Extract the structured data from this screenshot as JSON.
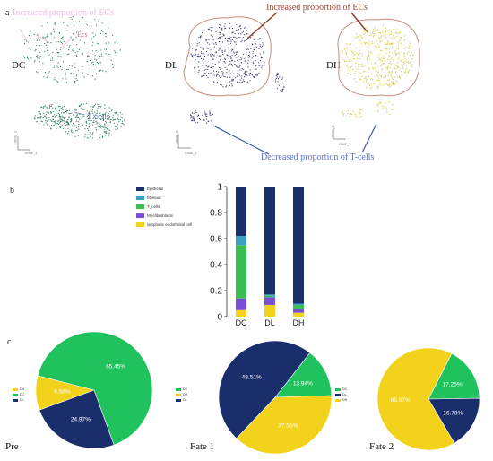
{
  "panel_a": {
    "letter": "a",
    "faded_label": "Increased proportion of ECs",
    "ecs_label": "Ecs",
    "tcells_label": "T cells",
    "increased_label": "Increased proportion of ECs",
    "decreased_label": "Decreased proportion of T-cells",
    "samples": [
      {
        "name": "DC",
        "color": "#2e7d55",
        "axis_x": "tSNE_1",
        "axis_y": "tSNE_2"
      },
      {
        "name": "DL",
        "color": "#3a3a7a",
        "axis_x": "tSNE_1",
        "axis_y": "tSNE_2"
      },
      {
        "name": "DH",
        "color": "#d7c43a",
        "axis_x": "tSNE_1",
        "axis_y": "tSNE_2"
      }
    ]
  },
  "panel_b": {
    "letter": "b",
    "legend": [
      {
        "name": "Epithelial",
        "color": "#1a2e6b"
      },
      {
        "name": "Myeloid",
        "color": "#3d9fc2"
      },
      {
        "name": "T_cells",
        "color": "#3dbb55"
      },
      {
        "name": "Myofibroblasts",
        "color": "#7b4fd6"
      },
      {
        "name": "lymphatic endothelial cell",
        "color": "#f2d21a"
      }
    ]
  },
  "chart_data": [
    {
      "type": "bar",
      "stacked": true,
      "categories": [
        "DC",
        "DL",
        "DH"
      ],
      "ylim": [
        0,
        1
      ],
      "yticks": [
        "0",
        "0.2",
        "0.4",
        "0.6",
        "0.8",
        "1"
      ],
      "series": [
        {
          "name": "lymphatic endothelial cell",
          "color": "#f2d21a",
          "values": [
            0.05,
            0.09,
            0.03
          ]
        },
        {
          "name": "Myofibroblasts",
          "color": "#7b4fd6",
          "values": [
            0.09,
            0.06,
            0.03
          ]
        },
        {
          "name": "T_cells",
          "color": "#3dbb55",
          "values": [
            0.41,
            0.01,
            0.03
          ]
        },
        {
          "name": "Myeloid",
          "color": "#3d9fc2",
          "values": [
            0.07,
            0.01,
            0.01
          ]
        },
        {
          "name": "Epithelial",
          "color": "#1a2e6b",
          "values": [
            0.38,
            0.83,
            0.9
          ]
        }
      ]
    },
    {
      "type": "pie",
      "label": "Pre",
      "slices": [
        {
          "legend": "DH",
          "label": "9.58%",
          "value": 9.58,
          "color": "#f2d21a"
        },
        {
          "legend": "DC",
          "label": "65.45%",
          "value": 65.45,
          "color": "#1fc25c"
        },
        {
          "legend": "DL",
          "label": "24.97%",
          "value": 24.97,
          "color": "#1a2e6b"
        }
      ]
    },
    {
      "type": "pie",
      "label": "Fate 1",
      "slices": [
        {
          "legend": "DC",
          "label": "13.94%",
          "value": 13.94,
          "color": "#1fc25c"
        },
        {
          "legend": "DH",
          "label": "37.55%",
          "value": 37.55,
          "color": "#f2d21a"
        },
        {
          "legend": "DL",
          "label": "48.51%",
          "value": 48.51,
          "color": "#1a2e6b"
        }
      ]
    },
    {
      "type": "pie",
      "label": "Fate 2",
      "slices": [
        {
          "legend": "DC",
          "label": "17.25%",
          "value": 17.25,
          "color": "#1fc25c"
        },
        {
          "legend": "DL",
          "label": "16.78%",
          "value": 16.78,
          "color": "#1a2e6b"
        },
        {
          "legend": "DH",
          "label": "65.97%",
          "value": 65.97,
          "color": "#f2d21a"
        }
      ]
    }
  ],
  "panel_c": {
    "letter": "c",
    "legends": [
      [
        "DH",
        "DC",
        "DL"
      ],
      [
        "DC",
        "DH",
        "DL"
      ],
      [
        "DC",
        "DL",
        "DH"
      ]
    ]
  }
}
